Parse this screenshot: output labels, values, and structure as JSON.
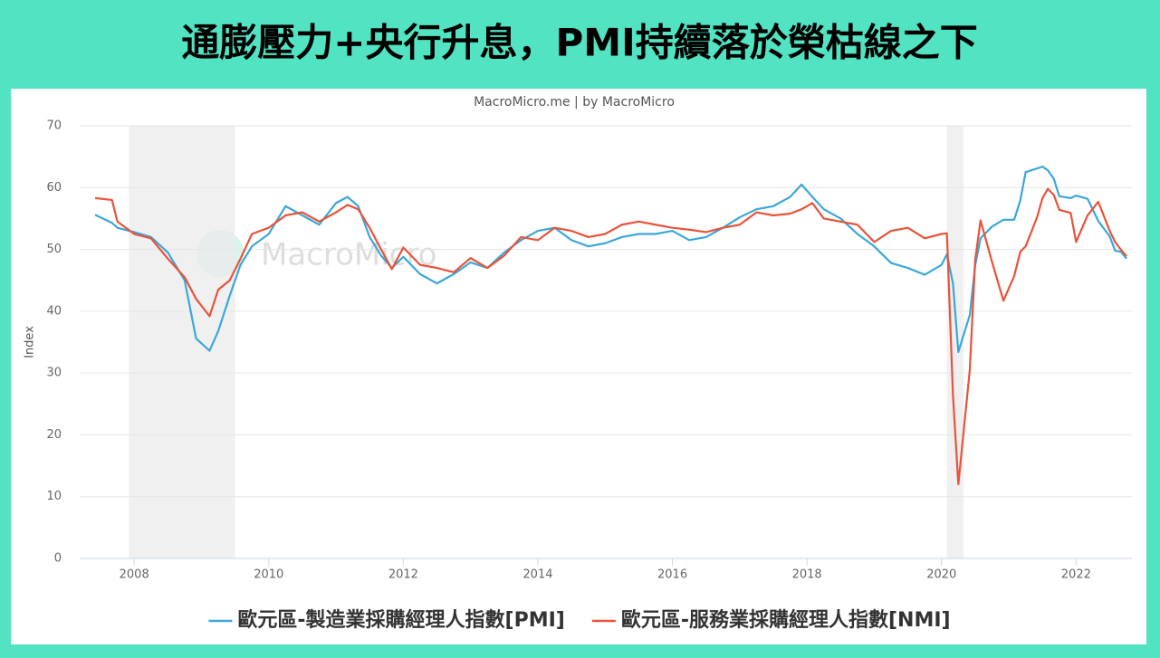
{
  "header": {
    "title": "通膨壓力+央行升息，PMI持續落於榮枯線之下"
  },
  "chart_data": {
    "type": "line",
    "subtitle": "MacroMicro.me | by MacroMicro",
    "watermark": "MacroMicro",
    "y_label": "Index",
    "x": [
      2007.42,
      2007.67,
      2007.75,
      2008.0,
      2008.25,
      2008.5,
      2008.75,
      2008.92,
      2009.12,
      2009.25,
      2009.42,
      2009.58,
      2009.75,
      2010.0,
      2010.25,
      2010.5,
      2010.75,
      2011.0,
      2011.17,
      2011.33,
      2011.5,
      2011.67,
      2011.83,
      2012.0,
      2012.25,
      2012.5,
      2012.75,
      2013.0,
      2013.25,
      2013.5,
      2013.75,
      2014.0,
      2014.25,
      2014.5,
      2014.75,
      2015.0,
      2015.25,
      2015.5,
      2015.75,
      2016.0,
      2016.25,
      2016.5,
      2016.75,
      2017.0,
      2017.25,
      2017.5,
      2017.75,
      2017.92,
      2018.08,
      2018.25,
      2018.5,
      2018.75,
      2019.0,
      2019.25,
      2019.5,
      2019.75,
      2020.0,
      2020.08,
      2020.17,
      2020.25,
      2020.42,
      2020.5,
      2020.58,
      2020.75,
      2020.92,
      2021.08,
      2021.17,
      2021.25,
      2021.42,
      2021.5,
      2021.58,
      2021.67,
      2021.75,
      2021.92,
      2022.0,
      2022.17,
      2022.33,
      2022.5,
      2022.58,
      2022.67,
      2022.75
    ],
    "series": [
      {
        "name": "歐元區-製造業採購經理人指數[PMI]",
        "color": "#3aa8d8",
        "values": [
          55.6,
          54.3,
          53.5,
          52.8,
          52.0,
          49.5,
          45.0,
          35.6,
          33.6,
          36.8,
          42.5,
          47.5,
          50.5,
          52.5,
          57.0,
          55.5,
          54.0,
          57.5,
          58.5,
          57.0,
          52.0,
          49.0,
          47.0,
          48.8,
          46.0,
          44.5,
          46.0,
          47.9,
          47.0,
          49.5,
          51.5,
          53.0,
          53.5,
          51.5,
          50.5,
          51.0,
          52.0,
          52.5,
          52.5,
          53.0,
          51.5,
          52.0,
          53.5,
          55.2,
          56.5,
          57.0,
          58.5,
          60.5,
          58.5,
          56.5,
          55.0,
          52.5,
          50.5,
          47.8,
          47.0,
          45.9,
          47.5,
          49.2,
          44.5,
          33.4,
          39.4,
          47.4,
          51.8,
          53.7,
          54.8,
          54.8,
          57.9,
          62.5,
          63.1,
          63.4,
          62.8,
          61.4,
          58.6,
          58.3,
          58.7,
          58.2,
          54.6,
          52.1,
          49.8,
          49.6,
          48.5
        ]
      },
      {
        "name": "歐元區-服務業採購經理人指數[NMI]",
        "color": "#e8533b",
        "values": [
          58.3,
          58.0,
          54.5,
          52.5,
          51.8,
          48.5,
          45.5,
          42.0,
          39.2,
          43.5,
          45.0,
          48.5,
          52.5,
          53.5,
          55.5,
          56.0,
          54.5,
          56.0,
          57.2,
          56.5,
          53.5,
          50.0,
          46.8,
          50.3,
          47.5,
          47.0,
          46.3,
          48.6,
          47.0,
          49.0,
          52.0,
          51.5,
          53.5,
          53.0,
          52.0,
          52.5,
          54.0,
          54.5,
          54.0,
          53.5,
          53.2,
          52.8,
          53.5,
          54.0,
          56.0,
          55.5,
          55.8,
          56.5,
          57.5,
          55.0,
          54.5,
          54.0,
          51.2,
          53.0,
          53.5,
          51.8,
          52.5,
          52.6,
          26.4,
          12.0,
          30.5,
          48.3,
          54.7,
          48.0,
          41.7,
          45.7,
          49.6,
          50.5,
          55.2,
          58.3,
          59.8,
          58.8,
          56.4,
          55.9,
          51.2,
          55.5,
          57.7,
          53.0,
          51.2,
          49.9,
          48.9
        ]
      }
    ],
    "recessions": [
      [
        2007.92,
        2009.5
      ],
      [
        2020.08,
        2020.33
      ]
    ],
    "xlim": [
      2007.19,
      2022.83
    ],
    "xticks": [
      2008,
      2010,
      2012,
      2014,
      2016,
      2018,
      2020,
      2022
    ],
    "ylim": [
      0,
      70
    ],
    "yticks": [
      0,
      10,
      20,
      30,
      40,
      50,
      60,
      70
    ],
    "grid": true,
    "legend": "bottom"
  }
}
